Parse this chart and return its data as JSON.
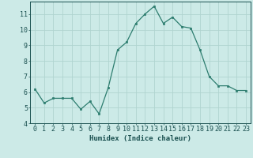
{
  "x": [
    0,
    1,
    2,
    3,
    4,
    5,
    6,
    7,
    8,
    9,
    10,
    11,
    12,
    13,
    14,
    15,
    16,
    17,
    18,
    19,
    20,
    21,
    22,
    23
  ],
  "y": [
    6.2,
    5.3,
    5.6,
    5.6,
    5.6,
    4.9,
    5.4,
    4.6,
    6.3,
    8.7,
    9.2,
    10.4,
    11.0,
    11.5,
    10.4,
    10.8,
    10.2,
    10.1,
    8.7,
    7.0,
    6.4,
    6.4,
    6.1,
    6.1
  ],
  "line_color": "#2d7d6f",
  "marker_color": "#2d7d6f",
  "bg_color": "#cceae7",
  "grid_color": "#b0d4d0",
  "xlabel": "Humidex (Indice chaleur)",
  "xlim": [
    -0.5,
    23.5
  ],
  "ylim": [
    4,
    11.8
  ],
  "yticks": [
    4,
    5,
    6,
    7,
    8,
    9,
    10,
    11
  ],
  "xticks": [
    0,
    1,
    2,
    3,
    4,
    5,
    6,
    7,
    8,
    9,
    10,
    11,
    12,
    13,
    14,
    15,
    16,
    17,
    18,
    19,
    20,
    21,
    22,
    23
  ],
  "xtick_labels": [
    "0",
    "1",
    "2",
    "3",
    "4",
    "5",
    "6",
    "7",
    "8",
    "9",
    "10",
    "11",
    "12",
    "13",
    "14",
    "15",
    "16",
    "17",
    "18",
    "19",
    "20",
    "21",
    "22",
    "23"
  ],
  "font_color": "#1a5050",
  "xlabel_fontsize": 6.5,
  "tick_fontsize": 6.0
}
